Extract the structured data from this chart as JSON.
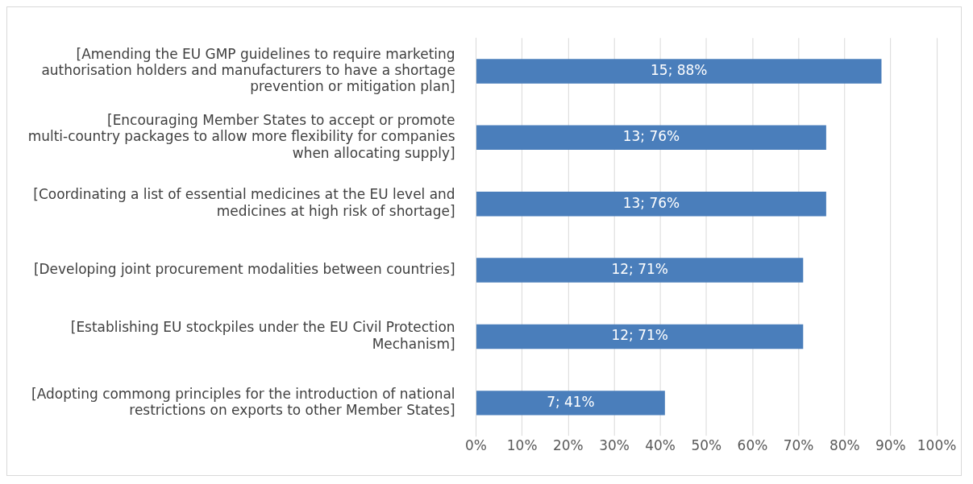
{
  "chart_data": {
    "type": "bar",
    "orientation": "horizontal",
    "categories": [
      "[Amending the EU GMP guidelines to require marketing authorisation holders and manufacturers to have a shortage prevention or mitigation plan]",
      "[Encouraging Member States to accept or promote multi-country packages to allow more flexibility for companies when allocating supply]",
      "[Coordinating a list of essential medicines at the EU level and medicines at high risk of shortage]",
      "[Developing joint procurement modalities between countries]",
      "[Establishing EU stockpiles under the EU Civil Protection Mechanism]",
      "[Adopting commong principles for the introduction of national restrictions on exports to other Member States]"
    ],
    "values": [
      88,
      76,
      76,
      71,
      71,
      41
    ],
    "value_labels": [
      "15; 88%",
      "13; 76%",
      "13; 76%",
      "12; 71%",
      "12; 71%",
      "7; 41%"
    ],
    "color": "#4a7ebb",
    "xlim": [
      0,
      100
    ],
    "xticks": [
      {
        "value": 0,
        "label": "0%"
      },
      {
        "value": 10,
        "label": "10%"
      },
      {
        "value": 20,
        "label": "20%"
      },
      {
        "value": 30,
        "label": "30%"
      },
      {
        "value": 40,
        "label": "40%"
      },
      {
        "value": 50,
        "label": "50%"
      },
      {
        "value": 60,
        "label": "60%"
      },
      {
        "value": 70,
        "label": "70%"
      },
      {
        "value": 80,
        "label": "80%"
      },
      {
        "value": 90,
        "label": "90%"
      },
      {
        "value": 100,
        "label": "100%"
      }
    ],
    "grid": "x",
    "legend": false
  }
}
